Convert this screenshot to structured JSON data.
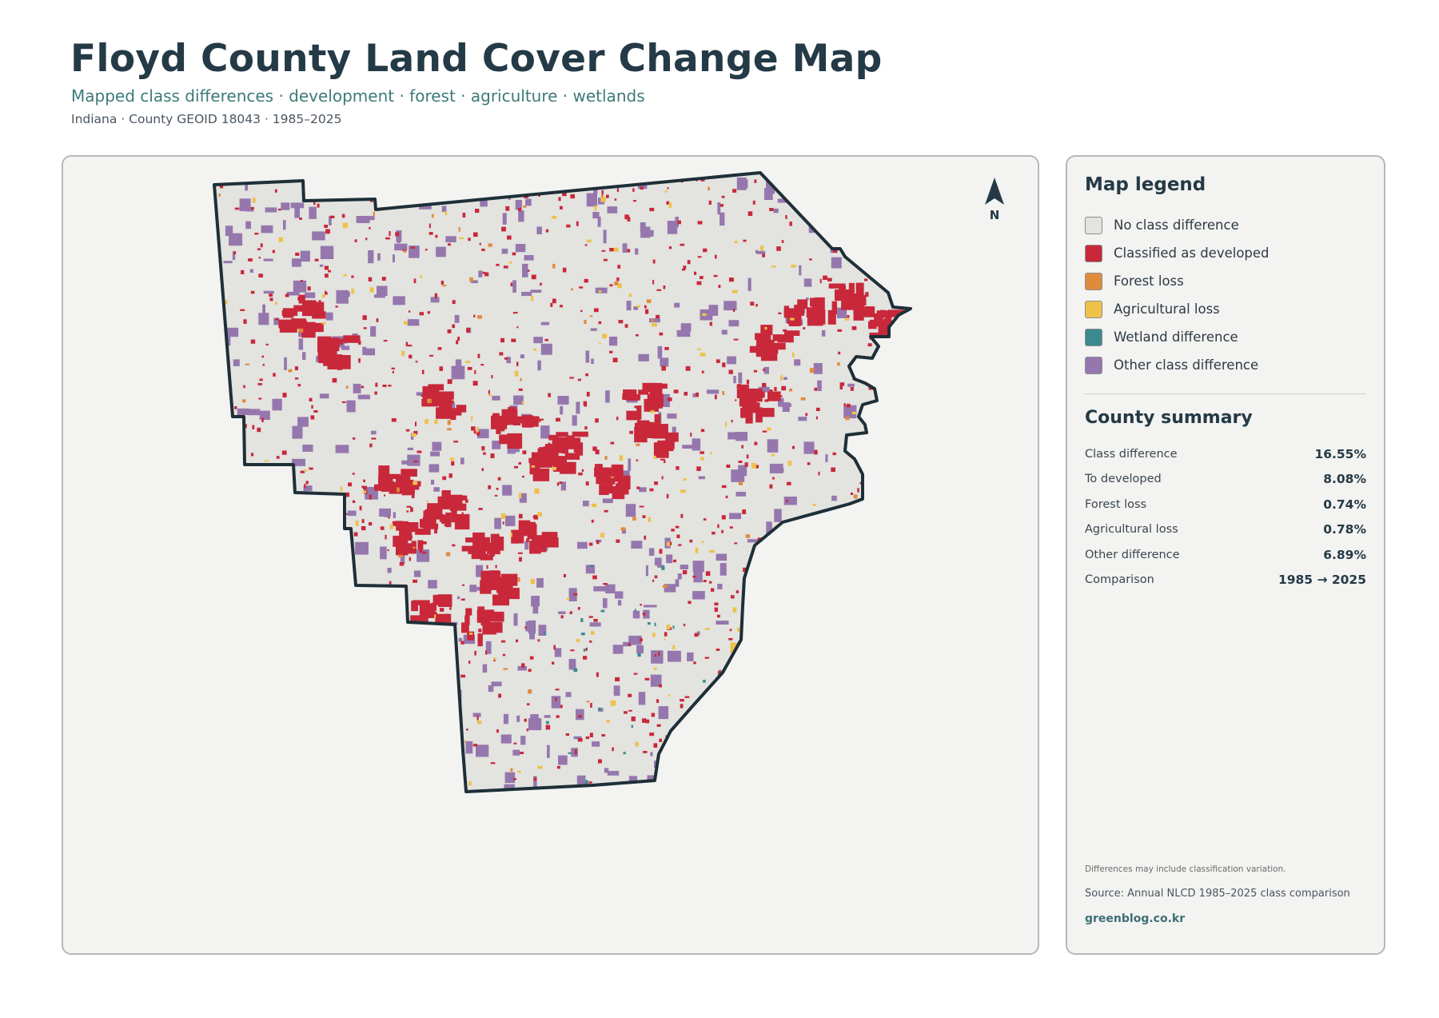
{
  "header": {
    "title": "Floyd County Land Cover Change Map",
    "subtitle": "Mapped class differences · development · forest · agriculture · wetlands",
    "meta": "Indiana · County GEOID 18043 · 1985–2025"
  },
  "map": {
    "north_label": "N",
    "colors": {
      "county_fill": "#e3e3e0",
      "boundary": "#1e2f38",
      "developed": "#c8283a",
      "forest_loss": "#e08a3c",
      "agricultural_loss": "#eec24a",
      "wetland": "#3a8a90",
      "other": "#9577ad"
    }
  },
  "legend": {
    "title": "Map legend",
    "items": [
      {
        "label": "No class difference",
        "color": "#e3e3e0"
      },
      {
        "label": "Classified as developed",
        "color": "#c8283a"
      },
      {
        "label": "Forest loss",
        "color": "#e08a3c"
      },
      {
        "label": "Agricultural loss",
        "color": "#eec24a"
      },
      {
        "label": "Wetland difference",
        "color": "#3a8a90"
      },
      {
        "label": "Other class difference",
        "color": "#9577ad"
      }
    ]
  },
  "summary": {
    "title": "County summary",
    "rows": [
      {
        "label": "Class difference",
        "value": "16.55%"
      },
      {
        "label": "To developed",
        "value": "8.08%"
      },
      {
        "label": "Forest loss",
        "value": "0.74%"
      },
      {
        "label": "Agricultural loss",
        "value": "0.78%"
      },
      {
        "label": "Other difference",
        "value": "6.89%"
      },
      {
        "label": "Comparison",
        "value": "1985 → 2025"
      }
    ]
  },
  "footer": {
    "note": "Differences may include classification variation.",
    "source": "Source: Annual NLCD 1985–2025 class comparison",
    "credit": "greenblog.co.kr"
  }
}
